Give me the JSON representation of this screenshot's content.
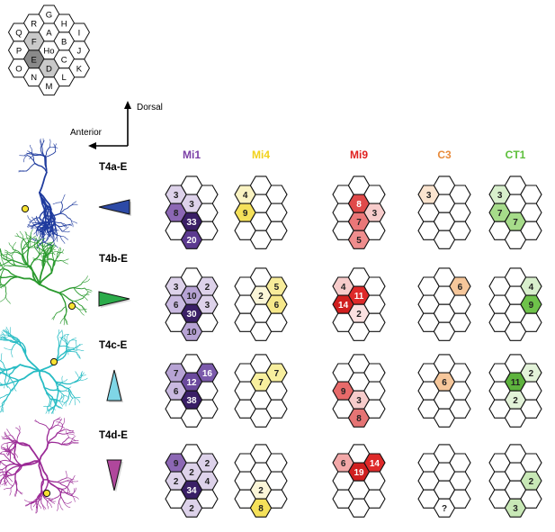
{
  "key_map": {
    "cells": [
      {
        "label": "G",
        "c": 2,
        "r": 0,
        "shade": "none"
      },
      {
        "label": "R",
        "c": 1,
        "r": 0.5,
        "shade": "none"
      },
      {
        "label": "H",
        "c": 3,
        "r": 0.5,
        "shade": "none"
      },
      {
        "label": "Q",
        "c": 0,
        "r": 1,
        "shade": "none"
      },
      {
        "label": "A",
        "c": 2,
        "r": 1,
        "shade": "none"
      },
      {
        "label": "I",
        "c": 4,
        "r": 1,
        "shade": "none"
      },
      {
        "label": "F",
        "c": 1,
        "r": 1.5,
        "shade": "light"
      },
      {
        "label": "B",
        "c": 3,
        "r": 1.5,
        "shade": "none"
      },
      {
        "label": "P",
        "c": 0,
        "r": 2,
        "shade": "none"
      },
      {
        "label": "Ho",
        "c": 2,
        "r": 2,
        "shade": "none"
      },
      {
        "label": "J",
        "c": 4,
        "r": 2,
        "shade": "none"
      },
      {
        "label": "E",
        "c": 1,
        "r": 2.5,
        "shade": "dark"
      },
      {
        "label": "C",
        "c": 3,
        "r": 2.5,
        "shade": "none"
      },
      {
        "label": "O",
        "c": 0,
        "r": 3,
        "shade": "none"
      },
      {
        "label": "D",
        "c": 2,
        "r": 3,
        "shade": "light"
      },
      {
        "label": "K",
        "c": 4,
        "r": 3,
        "shade": "none"
      },
      {
        "label": "N",
        "c": 1,
        "r": 3.5,
        "shade": "none"
      },
      {
        "label": "L",
        "c": 3,
        "r": 3.5,
        "shade": "none"
      },
      {
        "label": "M",
        "c": 2,
        "r": 4,
        "shade": "none"
      }
    ]
  },
  "axes": {
    "dorsal_label": "Dorsal",
    "anterior_label": "Anterior"
  },
  "columns": [
    {
      "id": "mi1",
      "label": "Mi1",
      "color": "#7b3fa6"
    },
    {
      "id": "mi4",
      "label": "Mi4",
      "color": "#f2d21b"
    },
    {
      "id": "mi9",
      "label": "Mi9",
      "color": "#e0201f"
    },
    {
      "id": "c3",
      "label": "C3",
      "color": "#e88b3b"
    },
    {
      "id": "ct1",
      "label": "CT1",
      "color": "#5cbf3a"
    }
  ],
  "rows": [
    {
      "id": "t4a",
      "label": "T4a-E",
      "neuron_color": "#1f3b9e",
      "direction": "left",
      "arrow_color": "#2d4aa6",
      "grids": {
        "mi1": [
          {
            "value": "3",
            "pos": "0,1",
            "fill": "#ddd2ea"
          },
          {
            "value": "3",
            "pos": "-1,0.5",
            "fill": "#ddd2ea"
          },
          {
            "value": "33",
            "pos": "0,2",
            "fill": "#3a1f66"
          },
          {
            "value": "8",
            "pos": "-1,1.5",
            "fill": "#8c67b4"
          },
          {
            "value": "20",
            "pos": "0,3",
            "fill": "#5c3a8f"
          }
        ],
        "mi4": [
          {
            "value": "4",
            "pos": "-1,0.5",
            "fill": "#faf3c2"
          },
          {
            "value": "9",
            "pos": "-1,1.5",
            "fill": "#f5e15a"
          }
        ],
        "mi9": [
          {
            "value": "8",
            "pos": "0,1",
            "fill": "#e04a4a"
          },
          {
            "value": "3",
            "pos": "1,1.5",
            "fill": "#f7cccb"
          },
          {
            "value": "7",
            "pos": "0,2",
            "fill": "#ea7778"
          },
          {
            "value": "5",
            "pos": "0,3",
            "fill": "#ef8d8d"
          }
        ],
        "c3": [
          {
            "value": "3",
            "pos": "-1,0.5",
            "fill": "#fbe4cf"
          }
        ],
        "ct1": [
          {
            "value": "3",
            "pos": "-1,0.5",
            "fill": "#d8efcc"
          },
          {
            "value": "7",
            "pos": "-1,1.5",
            "fill": "#a6dc8a"
          },
          {
            "value": "7",
            "pos": "0,2",
            "fill": "#a6dc8a"
          }
        ]
      }
    },
    {
      "id": "t4b",
      "label": "T4b-E",
      "neuron_color": "#2b9a2f",
      "direction": "right",
      "arrow_color": "#2bab4a",
      "grids": {
        "mi1": [
          {
            "value": "10",
            "pos": "0,1",
            "fill": "#b7a3d4"
          },
          {
            "value": "3",
            "pos": "-1,0.5",
            "fill": "#ddd2ea"
          },
          {
            "value": "2",
            "pos": "1,0.5",
            "fill": "#ddd2ea"
          },
          {
            "value": "30",
            "pos": "0,2",
            "fill": "#3a1f66"
          },
          {
            "value": "6",
            "pos": "-1,1.5",
            "fill": "#c9b9e0"
          },
          {
            "value": "3",
            "pos": "1,1.5",
            "fill": "#ddd2ea"
          },
          {
            "value": "10",
            "pos": "0,3",
            "fill": "#b7a3d4"
          }
        ],
        "mi4": [
          {
            "value": "2",
            "pos": "0,1",
            "fill": "#fbf6d8"
          },
          {
            "value": "5",
            "pos": "1,0.5",
            "fill": "#f7ec9a"
          },
          {
            "value": "6",
            "pos": "1,1.5",
            "fill": "#f6e88a"
          }
        ],
        "mi9": [
          {
            "value": "11",
            "pos": "0,1",
            "fill": "#de2a2a"
          },
          {
            "value": "4",
            "pos": "-1,0.5",
            "fill": "#f7cccb"
          },
          {
            "value": "14",
            "pos": "-1,1.5",
            "fill": "#d01f1f"
          },
          {
            "value": "2",
            "pos": "0,2",
            "fill": "#fbe0e0"
          }
        ],
        "c3": [
          {
            "value": "6",
            "pos": "1,0.5",
            "fill": "#f6c79b"
          }
        ],
        "ct1": [
          {
            "value": "4",
            "pos": "1,0.5",
            "fill": "#d8efcc"
          },
          {
            "value": "9",
            "pos": "1,1.5",
            "fill": "#6ec24a"
          }
        ]
      }
    },
    {
      "id": "t4c",
      "label": "T4c-E",
      "neuron_color": "#27bcc4",
      "direction": "up",
      "arrow_color": "#7fd6e6",
      "grids": {
        "mi1": [
          {
            "value": "12",
            "pos": "0,1",
            "fill": "#6b4a9d"
          },
          {
            "value": "7",
            "pos": "-1,0.5",
            "fill": "#b7a3d4"
          },
          {
            "value": "16",
            "pos": "1,0.5",
            "fill": "#7b5aab"
          },
          {
            "value": "38",
            "pos": "0,2",
            "fill": "#3a1f66"
          },
          {
            "value": "6",
            "pos": "-1,1.5",
            "fill": "#c9b9e0"
          }
        ],
        "mi4": [
          {
            "value": "7",
            "pos": "0,1",
            "fill": "#f8ef9e"
          },
          {
            "value": "7",
            "pos": "1,0.5",
            "fill": "#f8ef9e"
          }
        ],
        "mi9": [
          {
            "value": "3",
            "pos": "0,2",
            "fill": "#f7cccb"
          },
          {
            "value": "9",
            "pos": "-1,1.5",
            "fill": "#e86a6a"
          },
          {
            "value": "8",
            "pos": "0,3",
            "fill": "#e57474"
          }
        ],
        "c3": [
          {
            "value": "6",
            "pos": "0,1",
            "fill": "#f6c79b"
          }
        ],
        "ct1": [
          {
            "value": "11",
            "pos": "0,1",
            "fill": "#5eb33e"
          },
          {
            "value": "2",
            "pos": "1,0.5",
            "fill": "#e3f3d9"
          },
          {
            "value": "2",
            "pos": "0,2",
            "fill": "#e3f3d9"
          }
        ]
      }
    },
    {
      "id": "t4d",
      "label": "T4d-E",
      "neuron_color": "#9b2a96",
      "direction": "down",
      "arrow_color": "#b0479c",
      "grids": {
        "mi1": [
          {
            "value": "2",
            "pos": "0,1",
            "fill": "#ddd2ea"
          },
          {
            "value": "9",
            "pos": "-1,0.5",
            "fill": "#8c67b4"
          },
          {
            "value": "2",
            "pos": "1,0.5",
            "fill": "#ddd2ea"
          },
          {
            "value": "34",
            "pos": "0,2",
            "fill": "#3a1f66"
          },
          {
            "value": "2",
            "pos": "-1,1.5",
            "fill": "#ddd2ea"
          },
          {
            "value": "4",
            "pos": "1,1.5",
            "fill": "#ddd2ea"
          },
          {
            "value": "2",
            "pos": "0,3",
            "fill": "#ddd2ea"
          }
        ],
        "mi4": [
          {
            "value": "2",
            "pos": "0,2",
            "fill": "#fbf6d8"
          },
          {
            "value": "8",
            "pos": "0,3",
            "fill": "#f5e15a"
          }
        ],
        "mi9": [
          {
            "value": "19",
            "pos": "0,1",
            "fill": "#d01f1f"
          },
          {
            "value": "6",
            "pos": "-1,0.5",
            "fill": "#f2a8a8"
          },
          {
            "value": "14",
            "pos": "1,0.5",
            "fill": "#de2a2a"
          }
        ],
        "c3": [
          {
            "value": "?",
            "pos": "0,3",
            "fill": "none"
          }
        ],
        "ct1": [
          {
            "value": "2",
            "pos": "1,1.5",
            "fill": "#c8e8b6"
          },
          {
            "value": "3",
            "pos": "0,3",
            "fill": "#c8e8b6"
          }
        ]
      }
    }
  ]
}
